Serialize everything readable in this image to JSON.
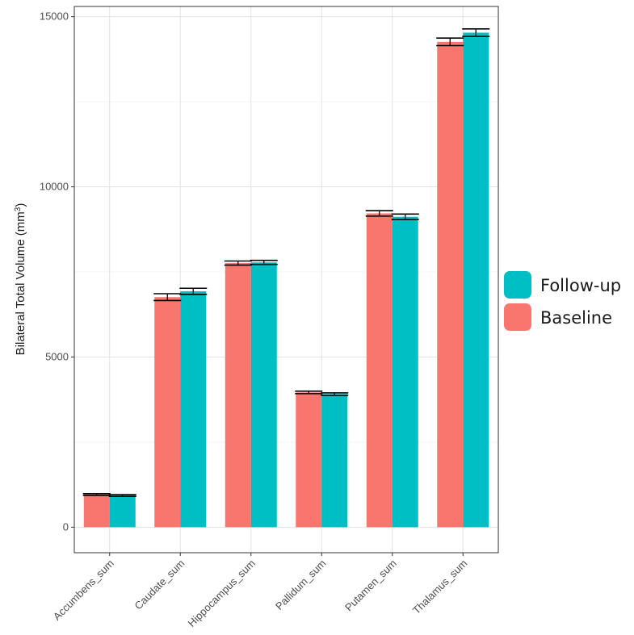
{
  "chart_data": {
    "type": "bar",
    "title": "",
    "xlabel": "",
    "ylabel": "Bilateral Total Volume (mm",
    "ylabel_superscript": "3",
    "ylabel_suffix": ")",
    "ylim": [
      -750,
      15300
    ],
    "yticks": [
      0,
      5000,
      10000,
      15000
    ],
    "grid": true,
    "legend_position": "right",
    "categories": [
      "Accumbens_sum",
      "Caudate_sum",
      "Hippocampus_sum",
      "Pallidum_sum",
      "Putamen_sum",
      "Thalamus_sum"
    ],
    "series": [
      {
        "name": "Baseline",
        "color": "#F8766D",
        "values": [
          960,
          6760,
          7760,
          3960,
          9220,
          14260
        ],
        "error": [
          25,
          100,
          60,
          35,
          80,
          110
        ]
      },
      {
        "name": "Follow-up",
        "color": "#00BFC4",
        "values": [
          930,
          6930,
          7780,
          3910,
          9120,
          14530
        ],
        "error": [
          25,
          90,
          60,
          35,
          80,
          110
        ]
      }
    ],
    "legend_order": [
      "Follow-up",
      "Baseline"
    ]
  }
}
